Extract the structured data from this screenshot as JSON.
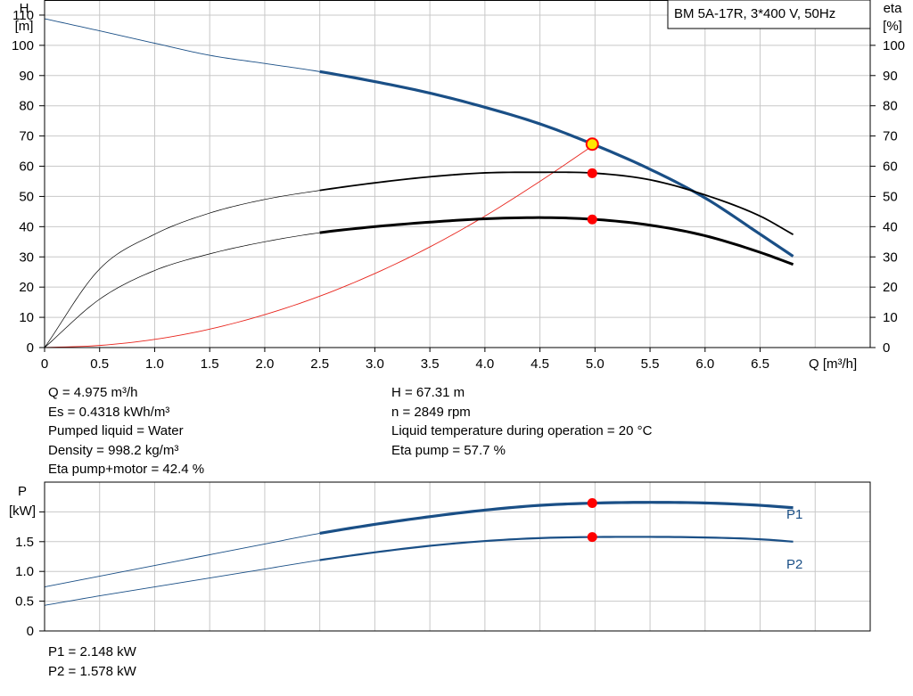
{
  "title_box": "BM 5A-17R, 3*400 V, 50Hz",
  "colors": {
    "head": "#1a4f86",
    "eta": "#000000",
    "power": "#1a4f86",
    "system": "#e8241c",
    "duty_fill": "#ffe600",
    "grid": "#c8c8c8"
  },
  "info_left": [
    "Q = 4.975 m³/h",
    "Es = 0.4318 kWh/m³",
    "Pumped liquid = Water",
    "Density = 998.2 kg/m³",
    "Eta pump+motor = 42.4 %"
  ],
  "info_right": [
    "H = 67.31 m",
    "n = 2849 rpm",
    "Liquid temperature during operation = 20 °C",
    "Eta pump = 57.7 %"
  ],
  "info_power": [
    "P1 = 2.148 kW",
    "P2 = 1.578 kW"
  ],
  "chart_data": [
    {
      "type": "line",
      "x_label": "Q [m³/h]",
      "y_label_left": [
        "H",
        "[m]"
      ],
      "y_label_right": [
        "eta",
        "[%]"
      ],
      "xlim": [
        0,
        7.5
      ],
      "ylim_left": [
        0,
        115
      ],
      "ylim_right": [
        0,
        115
      ],
      "x_ticks": [
        "0",
        "0.5",
        "1.0",
        "1.5",
        "2.0",
        "2.5",
        "3.0",
        "3.5",
        "4.0",
        "4.5",
        "5.0",
        "5.5",
        "6.0",
        "6.5"
      ],
      "y_ticks_left": [
        "0",
        "10",
        "20",
        "30",
        "40",
        "50",
        "60",
        "70",
        "80",
        "90",
        "100",
        "110"
      ],
      "y_ticks_right": [
        "0",
        "10",
        "20",
        "30",
        "40",
        "50",
        "60",
        "70",
        "80",
        "90",
        "100"
      ],
      "grid": true,
      "series": [
        {
          "name": "H",
          "x": [
            0,
            0.5,
            1.0,
            1.5,
            2.0,
            2.5,
            3.0,
            3.5,
            4.0,
            4.5,
            5.0,
            5.5,
            6.0,
            6.5,
            6.8
          ],
          "y": [
            108.8,
            104.8,
            100.7,
            96.7,
            94.0,
            91.3,
            88.0,
            84.2,
            79.5,
            74.0,
            67.0,
            59.0,
            49.5,
            37.5,
            30.2
          ],
          "operating_from": 2.5
        },
        {
          "name": "Eta pump",
          "x": [
            0,
            0.5,
            1.0,
            1.5,
            2.0,
            2.5,
            3.0,
            3.5,
            4.0,
            4.5,
            5.0,
            5.5,
            6.0,
            6.5,
            6.8
          ],
          "y": [
            0,
            26.0,
            37.5,
            44.5,
            49.0,
            52.0,
            54.5,
            56.5,
            57.8,
            58.0,
            57.7,
            55.5,
            50.5,
            43.5,
            37.4
          ],
          "operating_from": 2.5
        },
        {
          "name": "Eta pump+motor",
          "x": [
            0,
            0.5,
            1.0,
            1.5,
            2.0,
            2.5,
            3.0,
            3.5,
            4.0,
            4.5,
            5.0,
            5.5,
            6.0,
            6.5,
            6.8
          ],
          "y": [
            0,
            16.0,
            25.5,
            31.0,
            35.0,
            38.0,
            40.0,
            41.5,
            42.6,
            43.0,
            42.4,
            40.5,
            37.0,
            31.5,
            27.5
          ],
          "operating_from": 2.5
        },
        {
          "name": "System curve",
          "x": [
            0,
            0.5,
            1.0,
            1.5,
            2.0,
            2.5,
            3.0,
            3.5,
            4.0,
            4.5,
            5.0
          ],
          "y": [
            0,
            0.7,
            2.7,
            6.1,
            10.9,
            17.0,
            24.5,
            33.3,
            43.5,
            55.0,
            67.3
          ]
        }
      ],
      "duty_point": {
        "x": 4.975,
        "H": 67.31,
        "eta_pump": 57.7,
        "eta_total": 42.4
      }
    },
    {
      "type": "line",
      "y_label_left": [
        "P",
        "[kW]"
      ],
      "xlim": [
        0,
        7.5
      ],
      "ylim": [
        0,
        2.5
      ],
      "y_ticks": [
        "0",
        "0.5",
        "1.0",
        "1.5"
      ],
      "grid": true,
      "series": [
        {
          "name": "P1",
          "x": [
            0,
            0.5,
            1.0,
            1.5,
            2.0,
            2.5,
            3.0,
            3.5,
            4.0,
            4.5,
            5.0,
            5.5,
            6.0,
            6.5,
            6.8
          ],
          "y": [
            0.74,
            0.92,
            1.1,
            1.28,
            1.46,
            1.64,
            1.79,
            1.92,
            2.03,
            2.11,
            2.148,
            2.16,
            2.15,
            2.11,
            2.07
          ],
          "operating_from": 2.5
        },
        {
          "name": "P2",
          "x": [
            0,
            0.5,
            1.0,
            1.5,
            2.0,
            2.5,
            3.0,
            3.5,
            4.0,
            4.5,
            5.0,
            5.5,
            6.0,
            6.5,
            6.8
          ],
          "y": [
            0.43,
            0.59,
            0.74,
            0.89,
            1.04,
            1.19,
            1.32,
            1.43,
            1.51,
            1.56,
            1.578,
            1.58,
            1.57,
            1.54,
            1.5
          ],
          "operating_from": 2.5
        }
      ],
      "duty_point": {
        "x": 4.975,
        "P1": 2.148,
        "P2": 1.578
      }
    }
  ]
}
